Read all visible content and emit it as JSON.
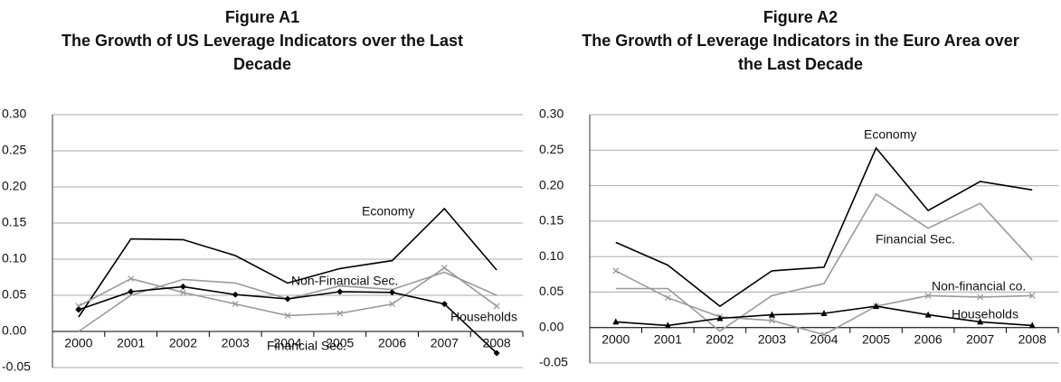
{
  "chart_data": [
    {
      "type": "line",
      "title": "Figure A1",
      "subtitle": "The Growth of US Leverage Indicators over the Last Decade",
      "categories": [
        "2000",
        "2001",
        "2002",
        "2003",
        "2004",
        "2005",
        "2006",
        "2007",
        "2008"
      ],
      "ylim": [
        -0.05,
        0.3
      ],
      "yticks": [
        {
          "value": -0.05,
          "label": "-0.05"
        },
        {
          "value": 0,
          "label": "0.00"
        },
        {
          "value": 0.05,
          "label": "0.05"
        },
        {
          "value": 0.1,
          "label": "0.10"
        },
        {
          "value": 0.15,
          "label": "0.15"
        },
        {
          "value": 0.2,
          "label": "0.20"
        },
        {
          "value": 0.25,
          "label": "0.25"
        },
        {
          "value": 0.3,
          "label": "0.30"
        }
      ],
      "grid": true,
      "series": [
        {
          "name": "Economy",
          "color": "#000000",
          "marker": "none",
          "values": [
            0.02,
            0.128,
            0.127,
            0.105,
            0.067,
            0.087,
            0.098,
            0.17,
            0.085
          ]
        },
        {
          "name": "Non-Financial Sec.",
          "color": "#9a9a9a",
          "marker": "none",
          "values": [
            0.0,
            0.05,
            0.072,
            0.067,
            0.045,
            0.063,
            0.058,
            0.082,
            0.05
          ]
        },
        {
          "name": "Financial Sec.",
          "color": "#9a9a9a",
          "marker": "x",
          "values": [
            0.035,
            0.073,
            0.054,
            0.038,
            0.022,
            0.025,
            0.038,
            0.088,
            0.035
          ]
        },
        {
          "name": "Households",
          "color": "#000000",
          "marker": "diamond",
          "values": [
            0.03,
            0.055,
            0.062,
            0.051,
            0.045,
            0.055,
            0.054,
            0.038,
            -0.03
          ]
        }
      ]
    },
    {
      "type": "line",
      "title": "Figure A2",
      "subtitle": "The Growth of Leverage Indicators in the Euro Area over the Last Decade",
      "categories": [
        "2000",
        "2001",
        "2002",
        "2003",
        "2004",
        "2005",
        "2006",
        "2007",
        "2008"
      ],
      "ylim": [
        -0.05,
        0.3
      ],
      "yticks": [
        {
          "value": -0.05,
          "label": "-0.05"
        },
        {
          "value": 0,
          "label": "0.00"
        },
        {
          "value": 0.05,
          "label": "0.05"
        },
        {
          "value": 0.1,
          "label": "0.10"
        },
        {
          "value": 0.15,
          "label": "0.15"
        },
        {
          "value": 0.2,
          "label": "0.20"
        },
        {
          "value": 0.25,
          "label": "0.25"
        },
        {
          "value": 0.3,
          "label": "0.30"
        }
      ],
      "grid": true,
      "series": [
        {
          "name": "Economy",
          "color": "#000000",
          "marker": "none",
          "values": [
            0.12,
            0.088,
            0.03,
            0.08,
            0.085,
            0.253,
            0.165,
            0.206,
            0.194
          ]
        },
        {
          "name": "Financial Sec.",
          "color": "#9a9a9a",
          "marker": "none",
          "values": [
            0.055,
            0.055,
            -0.005,
            0.045,
            0.062,
            0.188,
            0.14,
            0.175,
            0.095
          ]
        },
        {
          "name": "Non-financial co.",
          "color": "#9a9a9a",
          "marker": "x",
          "values": [
            0.08,
            0.042,
            0.015,
            0.01,
            -0.01,
            0.03,
            0.045,
            0.043,
            0.045
          ]
        },
        {
          "name": "Households",
          "color": "#000000",
          "marker": "triangle",
          "values": [
            0.008,
            0.003,
            0.013,
            0.018,
            0.02,
            0.03,
            0.018,
            0.008,
            0.003
          ]
        }
      ]
    }
  ]
}
